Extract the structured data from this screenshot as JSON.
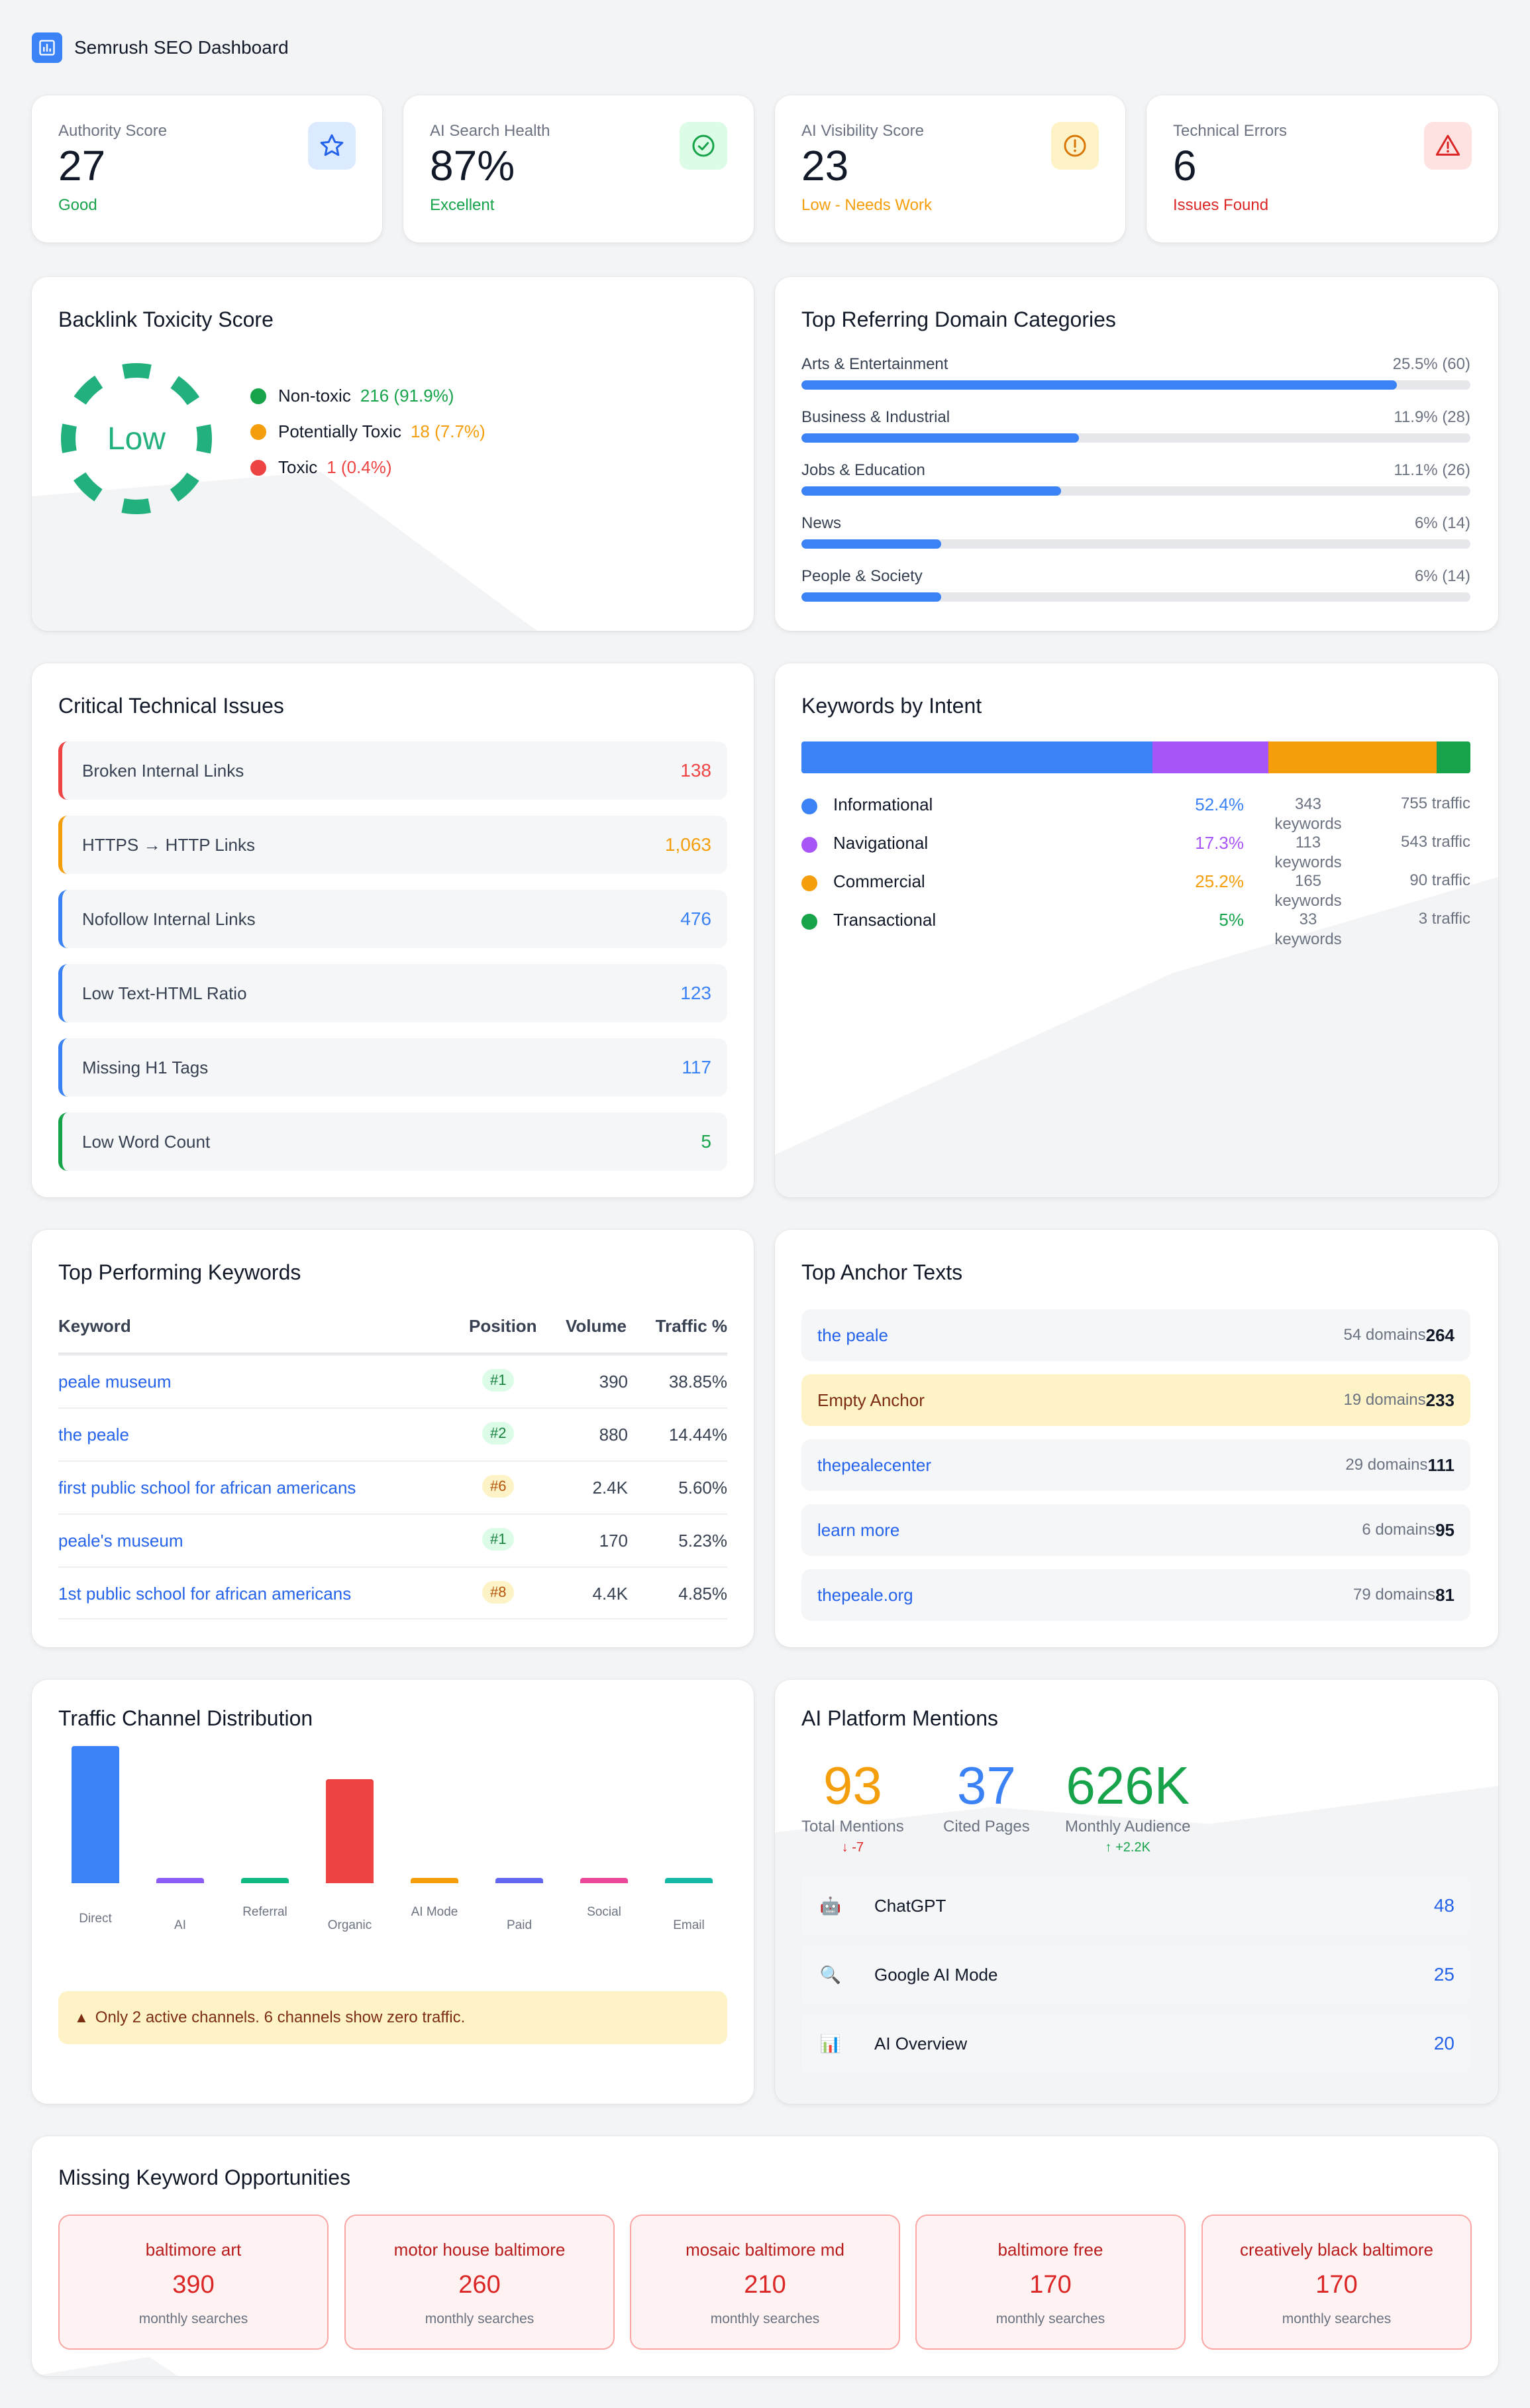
{
  "header": {
    "title": "Semrush SEO Dashboard"
  },
  "stats": [
    {
      "label": "Authority Score",
      "value": "27",
      "sub": "Good",
      "sub_color": "#16a34a",
      "icon": "star-icon"
    },
    {
      "label": "AI Search Health",
      "value": "87%",
      "sub": "Excellent",
      "sub_color": "#16a34a",
      "icon": "check-circle-icon"
    },
    {
      "label": "AI Visibility Score",
      "value": "23",
      "sub": "Low - Needs Work",
      "sub_color": "#f59e0b",
      "icon": "alert-circle-icon"
    },
    {
      "label": "Technical Errors",
      "value": "6",
      "sub": "Issues Found",
      "sub_color": "#dc2626",
      "icon": "warning-triangle-icon"
    }
  ],
  "toxicity": {
    "title": "Backlink Toxicity Score",
    "level": "Low",
    "legend": [
      {
        "label": "Non-toxic",
        "value": "216 (91.9%)",
        "color": "#16a34a"
      },
      {
        "label": "Potentially Toxic",
        "value": "18 (7.7%)",
        "color": "#f59e0b"
      },
      {
        "label": "Toxic",
        "value": "1 (0.4%)",
        "color": "#ef4444"
      }
    ]
  },
  "domains": {
    "title": "Top Referring Domain Categories",
    "items": [
      {
        "label": "Arts & Entertainment",
        "value": "25.5% (60)",
        "fraction": 0.89
      },
      {
        "label": "Business & Industrial",
        "value": "11.9% (28)",
        "fraction": 0.415
      },
      {
        "label": "Jobs & Education",
        "value": "11.1% (26)",
        "fraction": 0.388
      },
      {
        "label": "News",
        "value": "6% (14)",
        "fraction": 0.209
      },
      {
        "label": "People & Society",
        "value": "6% (14)",
        "fraction": 0.209
      }
    ]
  },
  "issues": {
    "title": "Critical Technical Issues",
    "items": [
      {
        "label": "Broken Internal Links",
        "count": "138",
        "color": "#ef4444"
      },
      {
        "label": "HTTPS → HTTP Links",
        "count": "1,063",
        "color": "#f59e0b"
      },
      {
        "label": "Nofollow Internal Links",
        "count": "476",
        "color": "#3b82f6"
      },
      {
        "label": "Low Text-HTML Ratio",
        "count": "123",
        "color": "#3b82f6"
      },
      {
        "label": "Missing H1 Tags",
        "count": "117",
        "color": "#3b82f6"
      },
      {
        "label": "Low Word Count",
        "count": "5",
        "color": "#16a34a"
      }
    ]
  },
  "intent": {
    "title": "Keywords by Intent",
    "items": [
      {
        "name": "Informational",
        "pct": "52.4%",
        "share": 52.4,
        "keywords": "343 keywords",
        "traffic": "755 traffic",
        "color": "#3b82f6"
      },
      {
        "name": "Navigational",
        "pct": "17.3%",
        "share": 17.3,
        "keywords": "113 keywords",
        "traffic": "543 traffic",
        "color": "#a855f7"
      },
      {
        "name": "Commercial",
        "pct": "25.2%",
        "share": 25.2,
        "keywords": "165 keywords",
        "traffic": "90 traffic",
        "color": "#f59e0b"
      },
      {
        "name": "Transactional",
        "pct": "5%",
        "share": 5,
        "keywords": "33 keywords",
        "traffic": "3 traffic",
        "color": "#16a34a"
      }
    ]
  },
  "keywords": {
    "title": "Top Performing Keywords",
    "columns": {
      "keyword": "Keyword",
      "position": "Position",
      "volume": "Volume",
      "traffic": "Traffic %"
    },
    "rows": [
      {
        "keyword": "peale museum",
        "position": "#1",
        "tier": "green",
        "volume": "390",
        "traffic": "38.85%"
      },
      {
        "keyword": "the peale",
        "position": "#2",
        "tier": "green",
        "volume": "880",
        "traffic": "14.44%"
      },
      {
        "keyword": "first public school for african americans",
        "position": "#6",
        "tier": "amber",
        "volume": "2.4K",
        "traffic": "5.60%"
      },
      {
        "keyword": "peale's museum",
        "position": "#1",
        "tier": "green",
        "volume": "170",
        "traffic": "5.23%"
      },
      {
        "keyword": "1st public school for african americans",
        "position": "#8",
        "tier": "amber",
        "volume": "4.4K",
        "traffic": "4.85%"
      }
    ]
  },
  "anchors": {
    "title": "Top Anchor Texts",
    "items": [
      {
        "text": "the peale",
        "domains": "54 domains",
        "count": "264",
        "highlight": false
      },
      {
        "text": "Empty Anchor",
        "domains": "19 domains",
        "count": "233",
        "highlight": true
      },
      {
        "text": "thepealecenter",
        "domains": "29 domains",
        "count": "111",
        "highlight": false
      },
      {
        "text": "learn more",
        "domains": "6 domains",
        "count": "95",
        "highlight": false
      },
      {
        "text": "thepeale.org",
        "domains": "79 domains",
        "count": "81",
        "highlight": false
      }
    ]
  },
  "traffic": {
    "title": "Traffic Channel Distribution",
    "alert": "Only 2 active channels. 6 channels show zero traffic."
  },
  "chart_data": {
    "type": "bar",
    "title": "Traffic Channel Distribution",
    "categories": [
      "Direct",
      "AI",
      "Referral",
      "Organic",
      "AI Mode",
      "Paid",
      "Social",
      "Email"
    ],
    "values": [
      100,
      0,
      0,
      76,
      0,
      0,
      0,
      0
    ],
    "colors": [
      "#3b82f6",
      "#8b5cf6",
      "#10b981",
      "#ef4444",
      "#f59e0b",
      "#6366f1",
      "#ec4899",
      "#14b8a6"
    ],
    "ylim": [
      0,
      100
    ],
    "xlabel": "",
    "ylabel": ""
  },
  "mentions": {
    "title": "AI Platform Mentions",
    "metrics": [
      {
        "value": "93",
        "label": "Total Mentions",
        "delta": "↓ -7",
        "color": "#f59e0b",
        "delta_color": "#dc2626"
      },
      {
        "value": "37",
        "label": "Cited Pages",
        "delta": "",
        "color": "#3b82f6",
        "delta_color": "#16a34a"
      },
      {
        "value": "626K",
        "label": "Monthly Audience",
        "delta": "↑ +2.2K",
        "color": "#16a34a",
        "delta_color": "#16a34a"
      }
    ],
    "platforms": [
      {
        "name": "ChatGPT",
        "count": "48",
        "icon": "robot-icon",
        "glyph": "🤖"
      },
      {
        "name": "Google AI Mode",
        "count": "25",
        "icon": "magnifier-icon",
        "glyph": "🔍"
      },
      {
        "name": "AI Overview",
        "count": "20",
        "icon": "bar-chart-icon",
        "glyph": "📊"
      }
    ]
  },
  "opportunities": {
    "title": "Missing Keyword Opportunities",
    "items": [
      {
        "keyword": "baltimore art",
        "value": "390",
        "label": "monthly searches"
      },
      {
        "keyword": "motor house baltimore",
        "value": "260",
        "label": "monthly searches"
      },
      {
        "keyword": "mosaic baltimore md",
        "value": "210",
        "label": "monthly searches"
      },
      {
        "keyword": "baltimore free",
        "value": "170",
        "label": "monthly searches"
      },
      {
        "keyword": "creatively black baltimore",
        "value": "170",
        "label": "monthly searches"
      }
    ]
  }
}
